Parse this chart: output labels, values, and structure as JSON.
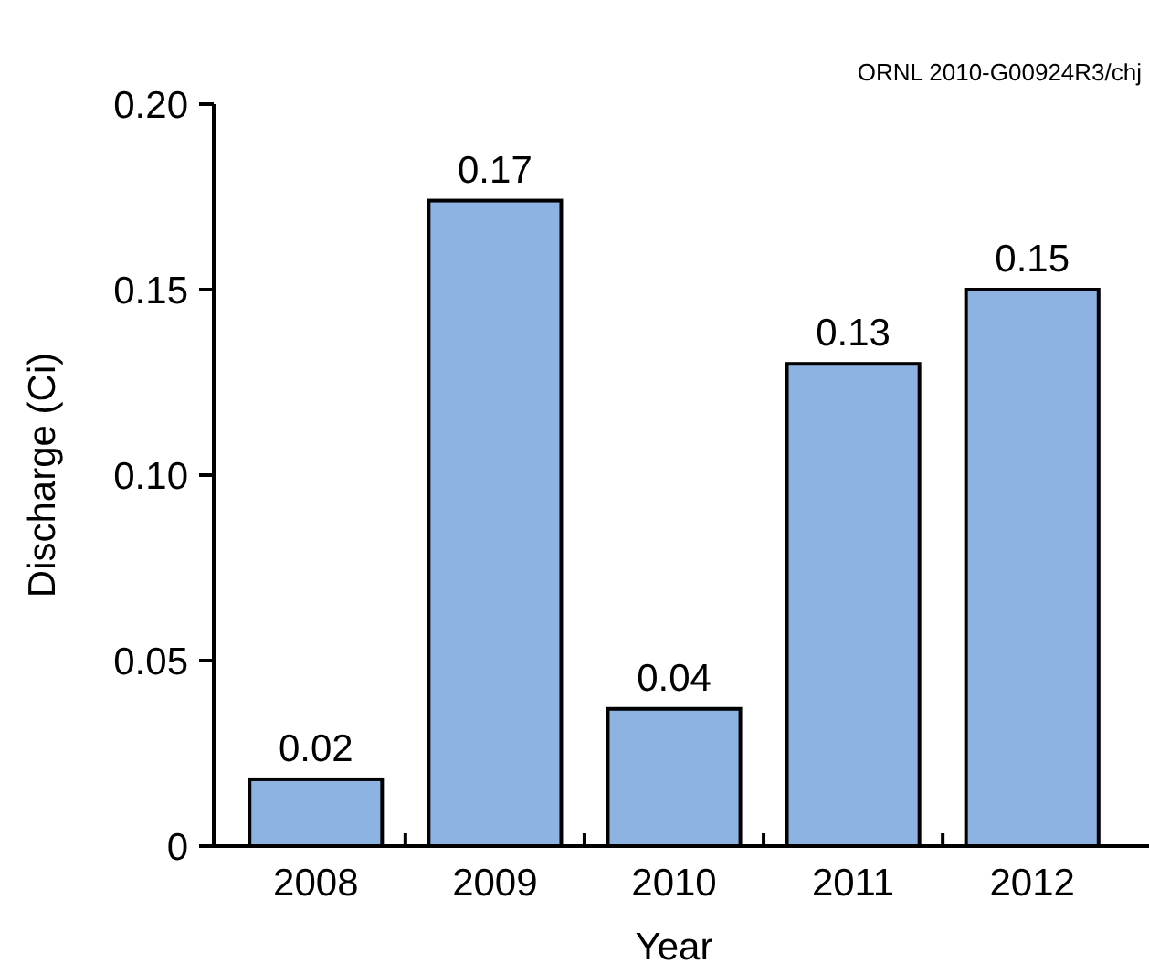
{
  "chart_data": {
    "type": "bar",
    "xlabel": "Year",
    "ylabel": "Discharge (Ci)",
    "annotations": [
      "ORNL 2010-G00924R3/chj"
    ],
    "categories": [
      "2008",
      "2009",
      "2010",
      "2011",
      "2012"
    ],
    "values": [
      0.018,
      0.174,
      0.037,
      0.13,
      0.15
    ],
    "value_labels": [
      "0.02",
      "0.17",
      "0.04",
      "0.13",
      "0.15"
    ],
    "color": "#8db3e2",
    "ylim": [
      0,
      0.2
    ],
    "yticks": [
      0,
      {
        "value": 0.05,
        "label": "0.05"
      },
      {
        "value": 0.1,
        "label": "0.10"
      },
      0.15,
      {
        "value": 0.2,
        "label": "0.20"
      }
    ],
    "grid": false
  }
}
